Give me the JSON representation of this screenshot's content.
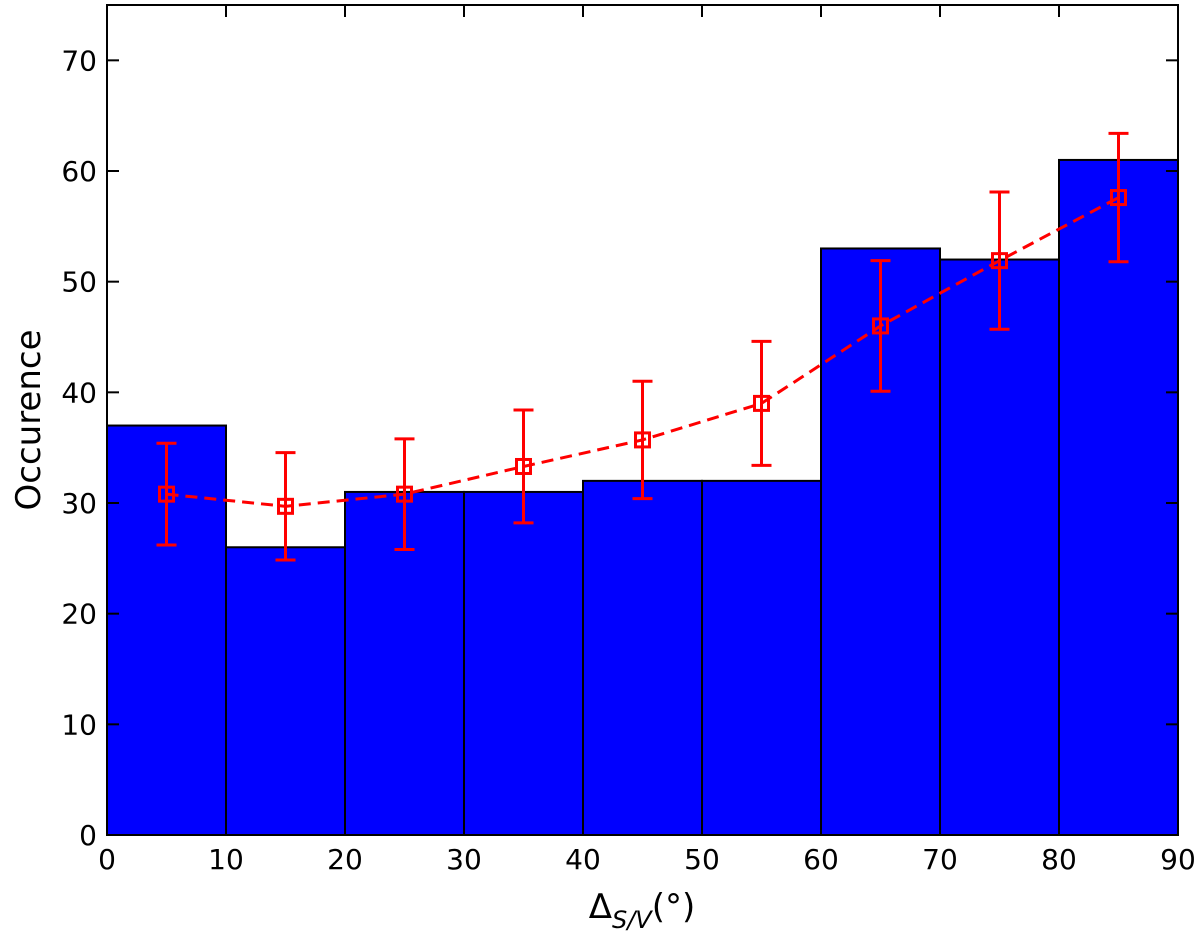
{
  "chart_data": {
    "type": "histogram",
    "bins": [
      0,
      10,
      20,
      30,
      40,
      50,
      60,
      70,
      80,
      90
    ],
    "counts": [
      37,
      26,
      31,
      31,
      32,
      32,
      53,
      52,
      61
    ],
    "color": "#0000ff",
    "x_label": {
      "symbol": "Δ",
      "subscript": "S/V",
      "unit": "(°)"
    },
    "y_label": "Occurence",
    "xlim": [
      0,
      90
    ],
    "ylim": [
      0,
      75
    ],
    "xticks": [
      0,
      10,
      20,
      30,
      40,
      50,
      60,
      70,
      80,
      90
    ],
    "yticks": [
      0,
      10,
      20,
      30,
      40,
      50,
      60,
      70
    ],
    "errorbar": {
      "type": "errorbar",
      "x": [
        5,
        15,
        25,
        35,
        45,
        55,
        65,
        75,
        85
      ],
      "values": [
        30.8,
        29.7,
        30.8,
        33.3,
        35.7,
        39.0,
        46.0,
        51.9,
        57.6
      ],
      "errors": [
        4.6,
        4.85,
        5.0,
        5.1,
        5.3,
        5.6,
        5.9,
        6.2,
        5.8
      ],
      "color": "#ff0000",
      "line_style": "dashed",
      "marker": "square"
    }
  }
}
